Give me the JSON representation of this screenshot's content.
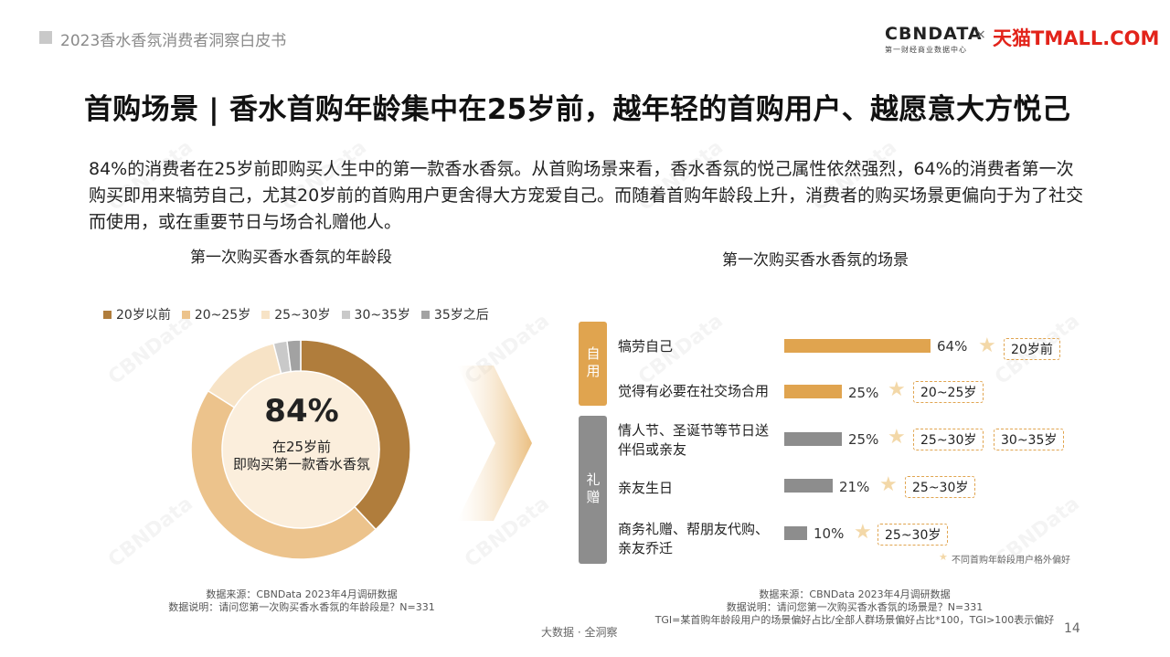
{
  "header": {
    "report_title": "2023香水香氛消费者洞察白皮书"
  },
  "logos": {
    "cbn": "CBNDATA",
    "cbn_sub": "第一财经商业数据中心",
    "x": "×",
    "tmall": "天猫TMALL.COM"
  },
  "title": "首购场景 | 香水首购年龄集中在25岁前，越年轻的首购用户、越愿意大方悦己",
  "intro": "84%的消费者在25岁前即购买人生中的第一款香水香氛。从首购场景来看，香水香氛的悦己属性依然强烈，64%的消费者第一次购买即用来犒劳自己，尤其20岁前的首购用户更舍得大方宠爱自己。而随着首购年龄段上升，消费者的购买场景更偏向于为了社交而使用，或在重要节日与场合礼赠他人。",
  "left_chart": {
    "subtitle": "第一次购买香水香氛的年龄段",
    "legend": [
      {
        "label": "20岁以前",
        "color": "#b07d3c"
      },
      {
        "label": "20~25岁",
        "color": "#ecc38c"
      },
      {
        "label": "25~30岁",
        "color": "#f7e3c6"
      },
      {
        "label": "30~35岁",
        "color": "#c9c9c9"
      },
      {
        "label": "35岁之后",
        "color": "#a2a2a2"
      }
    ],
    "center": {
      "value": "84%",
      "line1": "在25岁前",
      "line2": "即购买第一款香水香氛"
    },
    "source": "数据来源：CBNData 2023年4月调研数据",
    "note": "数据说明：请问您第一次购买香水香氛的年龄段是？N=331"
  },
  "chart_data": [
    {
      "type": "pie",
      "title": "第一次购买香水香氛的年龄段",
      "categories": [
        "20岁以前",
        "20~25岁",
        "25~30岁",
        "30~35岁",
        "35岁之后"
      ],
      "values": [
        38,
        46,
        12,
        2,
        2
      ],
      "colors": [
        "#b07d3c",
        "#ecc38c",
        "#f7e3c6",
        "#c9c9c9",
        "#a2a2a2"
      ],
      "legend": "top"
    },
    {
      "type": "bar",
      "title": "第一次购买香水香氛的场景",
      "categories": [
        "犒劳自己",
        "觉得有必要在社交场合用",
        "情人节、圣诞节等节日送伴侣或亲友",
        "亲友生日",
        "商务礼赠、帮朋友代购、亲友乔迁"
      ],
      "values": [
        64,
        25,
        25,
        21,
        10
      ],
      "unit": "%",
      "groups": [
        "自用",
        "自用",
        "礼赠",
        "礼赠",
        "礼赠"
      ]
    }
  ],
  "right_chart": {
    "subtitle": "第一次购买香水香氛的场景",
    "groups": [
      {
        "label": "自用",
        "color": "#e0a44f"
      },
      {
        "label": "礼赠",
        "color": "#8d8d8d"
      }
    ],
    "rows": [
      {
        "line1": "犒劳自己",
        "line2": "",
        "value": 64,
        "pct": "64%",
        "tags": [
          "20岁前"
        ]
      },
      {
        "line1": "觉得有必要在社交场合用",
        "line2": "",
        "value": 25,
        "pct": "25%",
        "tags": [
          "20~25岁"
        ]
      },
      {
        "line1": "情人节、圣诞节等节日送",
        "line2": "伴侣或亲友",
        "value": 25,
        "pct": "25%",
        "tags": [
          "25~30岁",
          "30~35岁"
        ]
      },
      {
        "line1": "亲友生日",
        "line2": "",
        "value": 21,
        "pct": "21%",
        "tags": [
          "25~30岁"
        ]
      },
      {
        "line1": "商务礼赠、帮朋友代购、",
        "line2": "亲友乔迁",
        "value": 10,
        "pct": "10%",
        "tags": [
          "25~30岁"
        ]
      }
    ],
    "star_note": "不同首购年龄段用户格外偏好",
    "source": "数据来源：CBNData 2023年4月调研数据",
    "note1": "数据说明：请问您第一次购买香水香氛的场景是？N=331",
    "note2": "TGI=某首购年龄段用户的场景偏好占比/全部人群场景偏好占比*100，TGI>100表示偏好"
  },
  "footer": {
    "slogan": "大数据 · 全洞察",
    "page": "14"
  },
  "watermark": "CBNData"
}
